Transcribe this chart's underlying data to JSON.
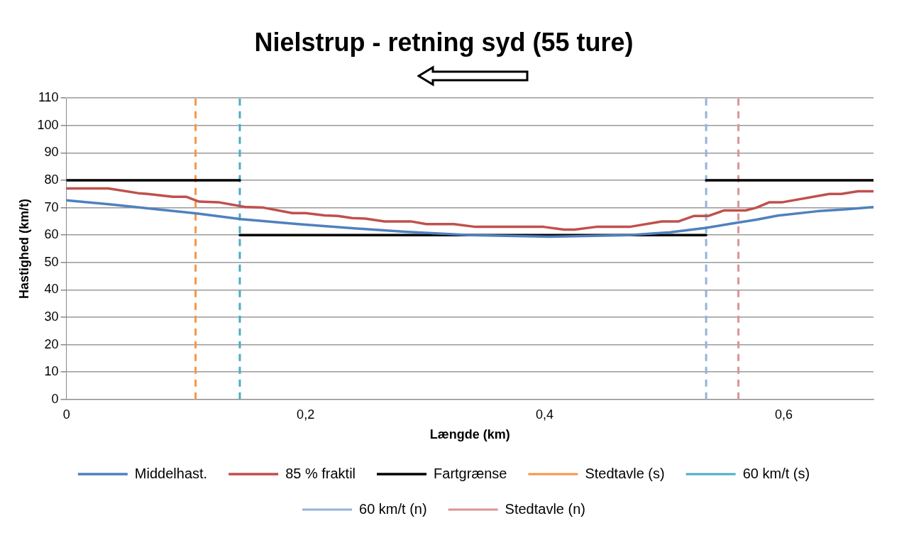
{
  "chart_data": {
    "type": "line",
    "title": "Nielstrup - retning syd (55 ture)",
    "xlabel": "Længde (km)",
    "ylabel": "Hastighed (km/t)",
    "xlim": [
      0,
      0.675
    ],
    "xticks": [
      0,
      {
        "value": 0.2,
        "label": "0,2"
      },
      {
        "value": 0.4,
        "label": "0,4"
      },
      {
        "value": 0.6,
        "label": "0,6"
      }
    ],
    "ylim": [
      0,
      110
    ],
    "yticks": [
      0,
      10,
      20,
      30,
      40,
      50,
      60,
      70,
      80,
      90,
      100,
      110
    ],
    "grid": "y",
    "legend": "bottom",
    "marker": "none",
    "line_style": "solid",
    "series": [
      {
        "name": "Middelhast.",
        "color": "#4f81bd",
        "x": [
          0,
          0.037,
          0.082,
          0.109,
          0.146,
          0.194,
          0.239,
          0.283,
          0.337,
          0.404,
          0.471,
          0.505,
          0.534,
          0.561,
          0.577,
          0.595,
          0.628,
          0.651,
          0.675
        ],
        "values": [
          72.7,
          71.2,
          69.1,
          67.9,
          65.8,
          64,
          62.5,
          61.2,
          60,
          59.4,
          60,
          61,
          62.6,
          64.5,
          65.6,
          67.1,
          68.7,
          69.4,
          70.2
        ]
      },
      {
        "name": "85 % fraktil",
        "color": "#c0504d",
        "x": [
          0,
          0.035,
          0.06,
          0.068,
          0.089,
          0.1,
          0.111,
          0.127,
          0.149,
          0.165,
          0.189,
          0.2,
          0.216,
          0.227,
          0.239,
          0.25,
          0.266,
          0.288,
          0.301,
          0.324,
          0.342,
          0.393,
          0.399,
          0.416,
          0.425,
          0.443,
          0.471,
          0.498,
          0.512,
          0.525,
          0.537,
          0.55,
          0.568,
          0.577,
          0.588,
          0.599,
          0.638,
          0.648,
          0.662,
          0.675
        ],
        "values": [
          77,
          77,
          75.3,
          75,
          74,
          74,
          72.2,
          72,
          70.3,
          70,
          68,
          68,
          67.2,
          67,
          66.2,
          66,
          65,
          65,
          64,
          64,
          63,
          63,
          63,
          62,
          62,
          63,
          63,
          65,
          65,
          67,
          67,
          69,
          69,
          70,
          72,
          72,
          75,
          75,
          76,
          76
        ]
      },
      {
        "name": "Fartgrænse",
        "color": "#000000",
        "x": [
          0,
          0.145,
          null,
          0.145,
          0.535,
          null,
          0.535,
          0.675
        ],
        "values": [
          80,
          80,
          null,
          60,
          60,
          null,
          80,
          80
        ]
      }
    ],
    "ref_lines": [
      {
        "axis": "x",
        "value": 0.108,
        "label": "Stedtavle (s)",
        "color": "#f79646",
        "line_style": "dashed"
      },
      {
        "axis": "x",
        "value": 0.145,
        "label": "60 km/t (s)",
        "color": "#4bacc6",
        "line_style": "dashed"
      },
      {
        "axis": "x",
        "value": 0.535,
        "label": "60 km/t (n)",
        "color": "#95b3d7",
        "line_style": "dashed"
      },
      {
        "axis": "x",
        "value": 0.562,
        "label": "Stedtavle (n)",
        "color": "#d99694",
        "line_style": "dashed"
      }
    ]
  }
}
